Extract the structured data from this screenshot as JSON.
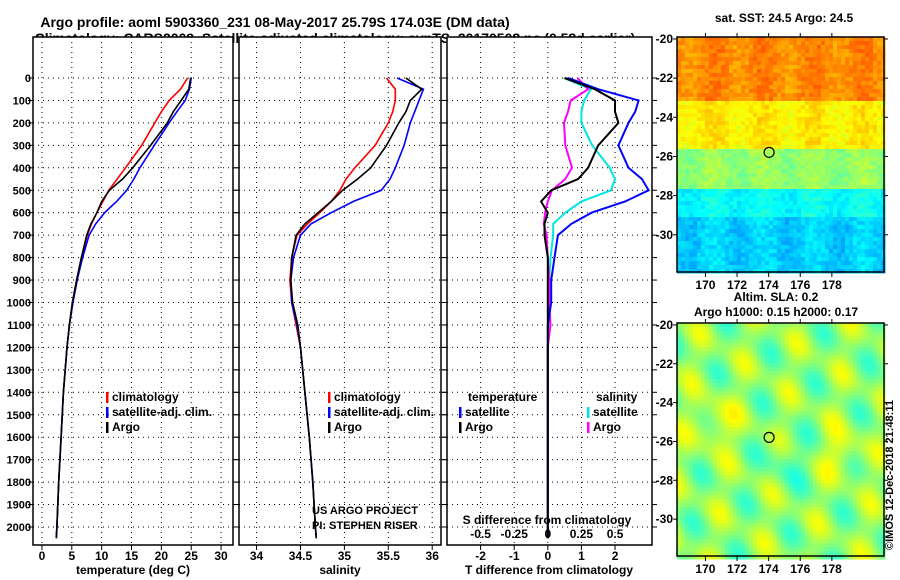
{
  "chart_data": {
    "type": "line",
    "title": "Argo profile: aoml 5903360_231 08-May-2017 25.79S 174.03E (DM data)",
    "subtitle": "Climatology: CARS2009. Satellite-adjusted climatology: synTS_20170508.nc (0.58d earlier)",
    "depth_ticks": [
      0,
      100,
      200,
      300,
      400,
      500,
      600,
      700,
      800,
      900,
      1000,
      1100,
      1200,
      1300,
      1400,
      1500,
      1600,
      1700,
      1800,
      1900,
      2000
    ],
    "depth": [
      0,
      50,
      100,
      150,
      200,
      300,
      400,
      450,
      500,
      550,
      600,
      650,
      700,
      800,
      900,
      1000,
      1100,
      1200,
      1400,
      1600,
      1800,
      2000,
      2050
    ],
    "temperature": {
      "xlabel": "temperature (deg C)",
      "xlim": [
        -1.5,
        32
      ],
      "ticks": [
        0,
        5,
        10,
        15,
        20,
        25,
        30
      ],
      "climatology": [
        24.4,
        23.2,
        21.3,
        20.0,
        18.9,
        16.7,
        14.0,
        12.6,
        11.2,
        10.2,
        9.2,
        8.3,
        7.6,
        6.6,
        5.8,
        5.1,
        4.6,
        4.2,
        3.6,
        3.2,
        2.8,
        2.5,
        2.4
      ],
      "satellite": [
        25.0,
        24.7,
        24.0,
        22.6,
        21.3,
        18.8,
        16.4,
        15.4,
        14.2,
        12.5,
        10.5,
        9.0,
        7.9,
        6.8,
        5.9,
        5.2,
        4.6,
        4.2,
        3.6,
        3.2,
        2.8,
        2.5,
        2.4
      ],
      "argo": [
        24.9,
        24.6,
        23.3,
        22.0,
        21.0,
        18.2,
        15.2,
        13.5,
        11.3,
        10.0,
        9.2,
        8.2,
        7.5,
        6.6,
        5.8,
        5.1,
        4.6,
        4.2,
        3.6,
        3.2,
        2.8,
        2.5,
        2.4
      ],
      "legend": [
        "climatology",
        "satellite-adj. clim.",
        "Argo"
      ]
    },
    "salinity": {
      "xlabel": "salinity",
      "xlim": [
        33.8,
        36.1
      ],
      "ticks": [
        34,
        34.5,
        35,
        35.5,
        36
      ],
      "climatology": [
        35.48,
        35.58,
        35.58,
        35.55,
        35.5,
        35.35,
        35.12,
        35.02,
        34.95,
        34.85,
        34.72,
        34.58,
        34.46,
        34.4,
        34.38,
        34.4,
        34.45,
        34.5,
        34.55,
        34.6,
        34.64,
        34.67,
        34.68
      ],
      "satellite": [
        35.6,
        35.9,
        35.85,
        35.8,
        35.75,
        35.68,
        35.58,
        35.52,
        35.42,
        35.1,
        34.85,
        34.62,
        34.5,
        34.42,
        34.39,
        34.4,
        34.46,
        34.5,
        34.55,
        34.6,
        34.64,
        34.67,
        34.68
      ],
      "argo": [
        35.7,
        35.88,
        35.75,
        35.7,
        35.62,
        35.48,
        35.3,
        35.15,
        34.98,
        34.85,
        34.7,
        34.55,
        34.45,
        34.4,
        34.39,
        34.41,
        34.47,
        34.5,
        34.55,
        34.6,
        34.64,
        34.67,
        34.68
      ],
      "legend": [
        "climatology",
        "satellite-adj. clim.",
        "Argo"
      ]
    },
    "difference": {
      "xlabel": "T difference from climatology",
      "s_label": "S difference from climatology",
      "t_ticks": [
        -2,
        -1,
        0,
        1,
        2
      ],
      "s_ticks": [
        "-0.5",
        "-0.25",
        "0",
        "0.25",
        "0.5"
      ],
      "t_xlim": [
        -3,
        3.1
      ],
      "legend_temperature": {
        "title": "temperature",
        "items": [
          "satellite",
          "Argo"
        ]
      },
      "legend_salinity": {
        "title": "salinity",
        "items": [
          "satellite",
          "Argo"
        ]
      }
    },
    "credit": [
      "US ARGO PROJECT",
      "PI: STEPHEN RISER"
    ],
    "maps": [
      {
        "title": "sat. SST: 24.5 Argo: 24.5",
        "lon_ticks": [
          170,
          172,
          174,
          176,
          178
        ],
        "lat_ticks": [
          -20,
          -22,
          -24,
          -26,
          -28,
          -30
        ],
        "lon_range": [
          168.2,
          181.3
        ],
        "lat_range": [
          -19.9,
          -31.9
        ]
      },
      {
        "title": "Altim. SLA: 0.2",
        "title2": "Argo h1000: 0.15 h2000: 0.17",
        "lon_ticks": [
          170,
          172,
          174,
          176,
          178
        ],
        "lat_ticks": [
          -20,
          -22,
          -24,
          -26,
          -28,
          -30
        ],
        "lon_range": [
          168.2,
          181.3
        ],
        "lat_range": [
          -19.9,
          -31.9
        ]
      }
    ],
    "float_position": {
      "lon": 174.03,
      "lat": -25.79
    },
    "colors": {
      "climatology": "#ff0000",
      "satellite": "#0000ff",
      "argo": "#000000",
      "s_satellite": "#00e5e5",
      "s_argo": "#ff00ff"
    },
    "watermark": "©IMOS 12-Dec-2018 21:48:11"
  }
}
